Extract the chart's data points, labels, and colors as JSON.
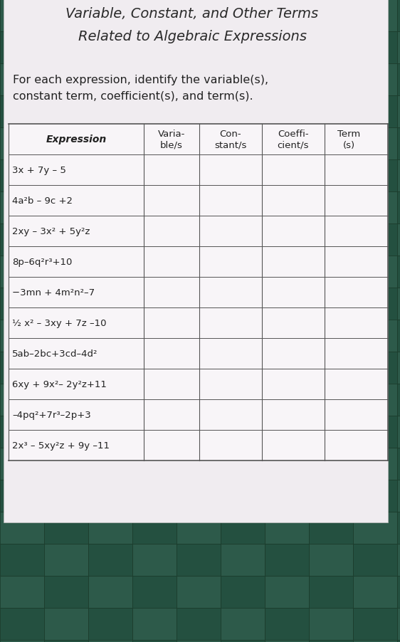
{
  "title_line1": "Variable, Constant, and Other Terms",
  "title_line2": "Related to Algebraic Expressions",
  "instruction_line1": "For each expression, identify the variable(s),",
  "instruction_line2": "constant term, coefficient(s), and term(s).",
  "col_headers": [
    "Expression",
    "Varia-\nble/s",
    "Con-\nstant/s",
    "Coeffi-\ncient/s",
    "Term\n(s)"
  ],
  "expressions": [
    "3x + 7y – 5",
    "4a²b – 9c +2",
    "2xy – 3x² + 5y²z",
    "8p–6q²r³+10",
    "−3mn + 4m²n²–7",
    "½ x² – 3xy + 7z –10",
    "5ab–2bc+3cd–4d²",
    "6xy + 9x²– 2y²z+11",
    "–4pq²+7r³–2p+3",
    "2x³ – 5xy²z + 9y –11"
  ],
  "bg_color": "#2d5a4a",
  "paper_color": "#f0ecf0",
  "table_line_color": "#555555",
  "text_color": "#222222",
  "title_color": "#2a2a2a",
  "tile_color1": "#2d5a4a",
  "tile_color2": "#245040"
}
